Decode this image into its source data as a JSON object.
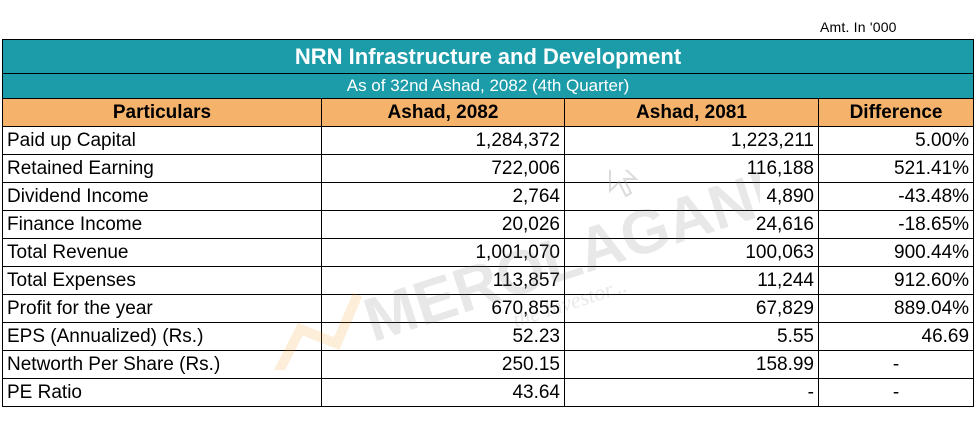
{
  "note": "Amt. In '000",
  "title": "NRN Infrastructure and Development",
  "subtitle": "As of 32nd Ashad, 2082 (4th Quarter)",
  "headers": [
    "Particulars",
    "Ashad, 2082",
    "Ashad, 2081",
    "Difference"
  ],
  "rows": [
    {
      "particular": "Paid up Capital",
      "current": "1,284,372",
      "previous": "1,223,211",
      "difference": "5.00%"
    },
    {
      "particular": "Retained Earning",
      "current": "722,006",
      "previous": "116,188",
      "difference": "521.41%"
    },
    {
      "particular": "Dividend Income",
      "current": "2,764",
      "previous": "4,890",
      "difference": "-43.48%"
    },
    {
      "particular": "Finance Income",
      "current": "20,026",
      "previous": "24,616",
      "difference": "-18.65%"
    },
    {
      "particular": "Total Revenue",
      "current": "1,001,070",
      "previous": "100,063",
      "difference": "900.44%"
    },
    {
      "particular": "Total Expenses",
      "current": "113,857",
      "previous": "11,244",
      "difference": "912.60%"
    },
    {
      "particular": "Profit for the year",
      "current": "670,855",
      "previous": "67,829",
      "difference": "889.04%"
    },
    {
      "particular": "EPS (Annualized) (Rs.)",
      "current": "52.23",
      "previous": "5.55",
      "difference": "46.69"
    },
    {
      "particular": "Networth Per Share (Rs.)",
      "current": "250.15",
      "previous": "158.99",
      "difference": "-"
    },
    {
      "particular": "PE Ratio",
      "current": "43.64",
      "previous": "-",
      "difference": "-"
    }
  ],
  "watermark": {
    "brand": "MEROLAGANI",
    "tagline": "the Investor...",
    "icon": "cursor-arrow-icon"
  }
}
